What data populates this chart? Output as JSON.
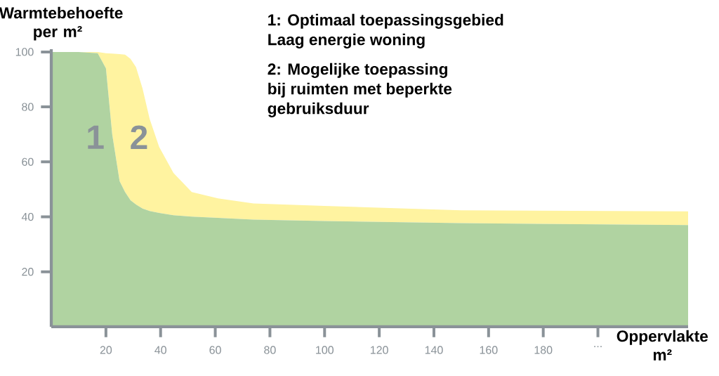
{
  "chart_data": {
    "type": "area",
    "ylabel": "Warmtebehoefte per m²",
    "xlabel": "Oppervlakte m²",
    "annotations": [
      "1: Optimaal toepassingsgebied",
      "Laag energie woning",
      "2: Mogelijke toepassing",
      "bij ruimten met beperkte",
      "gebruiksduur"
    ],
    "stacked": true,
    "x": [
      0,
      10,
      17,
      20,
      22.3,
      25,
      27,
      29,
      31,
      33.4,
      36,
      39.5,
      44.7,
      51.4,
      61,
      74,
      100,
      150,
      233
    ],
    "xlim": [
      0,
      233
    ],
    "ylim": [
      0,
      101
    ],
    "xticks": [
      20,
      40,
      60,
      80,
      100,
      120,
      140,
      160,
      180,
      {
        "value": 200,
        "label": "..."
      }
    ],
    "yticks": [
      20,
      40,
      60,
      80,
      100
    ],
    "series": [
      {
        "name": "1",
        "color": "#b0d3a1",
        "values": [
          100,
          100,
          99.5,
          94,
          70,
          53,
          49,
          46,
          44.5,
          43,
          42.1,
          41.4,
          40.6,
          40.1,
          39.6,
          39,
          38.5,
          37.7,
          37
        ]
      },
      {
        "name": "2",
        "color": "#fff3a0",
        "values": [
          0,
          0,
          0.5,
          5.5,
          29.4,
          46.2,
          50,
          51.5,
          50,
          43.7,
          33.5,
          24,
          15.4,
          8.9,
          7.1,
          5.9,
          5.5,
          4.7,
          5
        ]
      }
    ]
  }
}
